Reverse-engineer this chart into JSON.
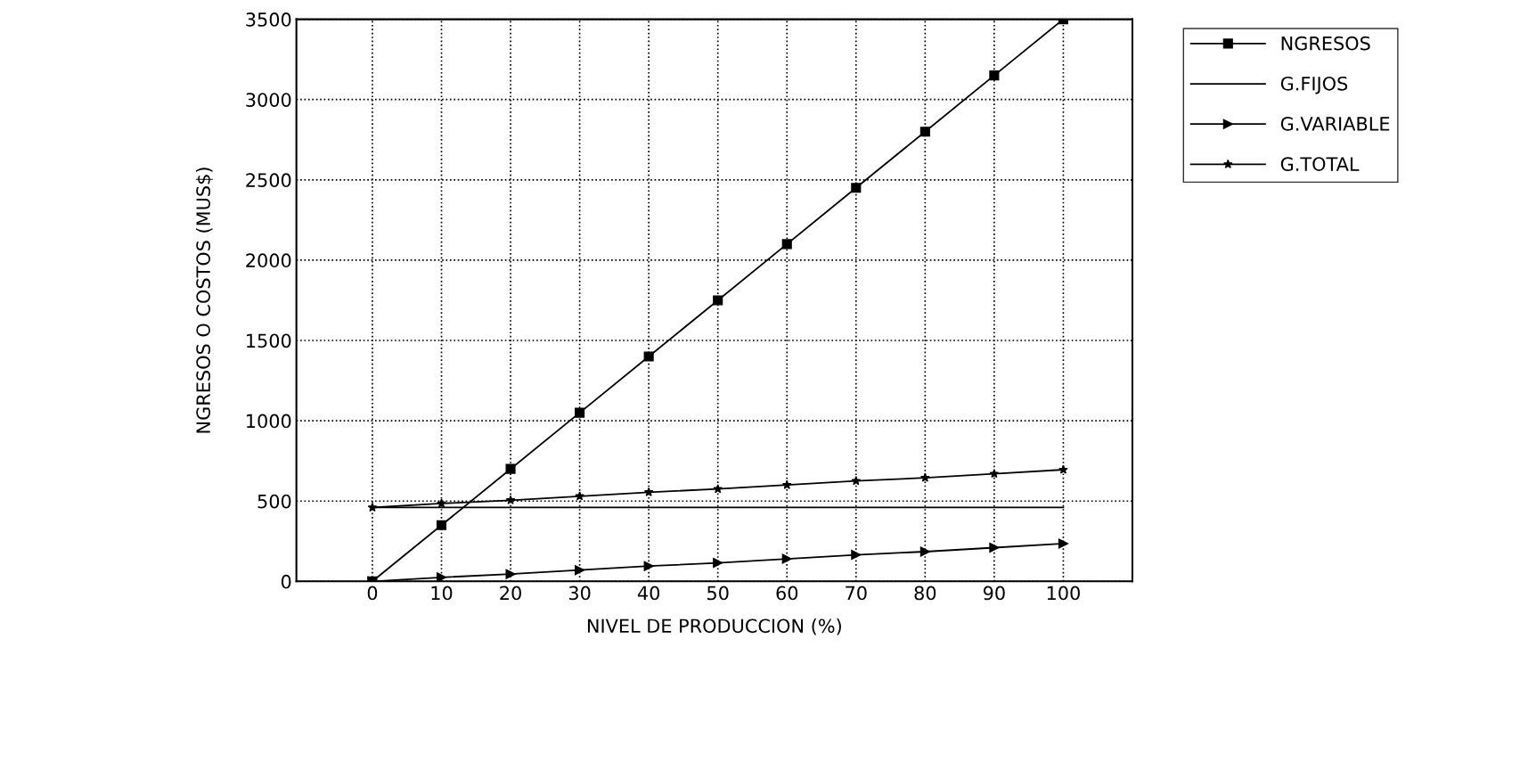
{
  "chart_data": {
    "type": "line",
    "xlabel": "NIVEL DE PRODUCCION (%)",
    "ylabel": "NGRESOS O COSTOS (MUS$)",
    "x": [
      0,
      10,
      20,
      30,
      40,
      50,
      60,
      70,
      80,
      90,
      100
    ],
    "series": [
      {
        "name": "NGRESOS",
        "color": "#000000",
        "marker": "square",
        "values": [
          0,
          350,
          700,
          1050,
          1400,
          1750,
          2100,
          2450,
          2800,
          3150,
          3500
        ]
      },
      {
        "name": "G.FIJOS",
        "color": "#000000",
        "marker": "none",
        "values": [
          460,
          460,
          460,
          460,
          460,
          460,
          460,
          460,
          460,
          460,
          460
        ]
      },
      {
        "name": "G.VARIABLE",
        "color": "#000000",
        "marker": "triangle",
        "values": [
          0,
          25,
          45,
          70,
          95,
          115,
          140,
          165,
          185,
          210,
          235
        ]
      },
      {
        "name": "G.TOTAL",
        "color": "#000000",
        "marker": "star",
        "values": [
          460,
          485,
          505,
          530,
          555,
          575,
          600,
          625,
          645,
          670,
          695
        ]
      }
    ],
    "xlim": [
      -11,
      110
    ],
    "ylim": [
      0,
      3500
    ],
    "xticks": [
      0,
      10,
      20,
      30,
      40,
      50,
      60,
      70,
      80,
      90,
      100
    ],
    "yticks": [
      0,
      500,
      1000,
      1500,
      2000,
      2500,
      3000,
      3500
    ],
    "grid": true,
    "legend": "right",
    "line_style": "solid"
  }
}
